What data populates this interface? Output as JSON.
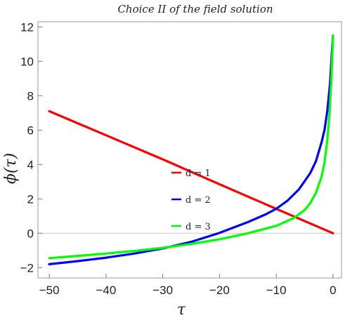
{
  "chart_data": {
    "type": "line",
    "title": "Choice II of the field solution",
    "xlabel": "τ",
    "ylabel": "ϕ(τ)",
    "xlim": [
      -52,
      1.5
    ],
    "ylim": [
      -2.6,
      12.3
    ],
    "xticks": [
      {
        "value": -50,
        "label": "−50"
      },
      {
        "value": -40,
        "label": "−40"
      },
      {
        "value": -30,
        "label": "−30"
      },
      {
        "value": -20,
        "label": "−20"
      },
      {
        "value": -10,
        "label": "−10"
      },
      {
        "value": 0,
        "label": "0"
      }
    ],
    "yticks": [
      {
        "value": -2,
        "label": "−2"
      },
      {
        "value": 0,
        "label": "0"
      },
      {
        "value": 2,
        "label": "2"
      },
      {
        "value": 4,
        "label": "4"
      },
      {
        "value": 6,
        "label": "6"
      },
      {
        "value": 8,
        "label": "8"
      },
      {
        "value": 10,
        "label": "10"
      },
      {
        "value": 12,
        "label": "12"
      }
    ],
    "legend_position": "center",
    "grid": false,
    "series": [
      {
        "name": "d = 1",
        "color": "#ff0000",
        "points": [
          [
            -50,
            7.1
          ],
          [
            -40,
            5.7
          ],
          [
            -30,
            4.3
          ],
          [
            -20,
            2.85
          ],
          [
            -10,
            1.42
          ],
          [
            0,
            0.0
          ]
        ]
      },
      {
        "name": "d = 2",
        "color": "#0000ff",
        "points": [
          [
            -50,
            -1.8
          ],
          [
            -45,
            -1.62
          ],
          [
            -40,
            -1.42
          ],
          [
            -35,
            -1.18
          ],
          [
            -30,
            -0.88
          ],
          [
            -25,
            -0.5
          ],
          [
            -20,
            0.02
          ],
          [
            -15,
            0.65
          ],
          [
            -12,
            1.08
          ],
          [
            -10,
            1.42
          ],
          [
            -8,
            1.9
          ],
          [
            -6,
            2.55
          ],
          [
            -4,
            3.5
          ],
          [
            -3,
            4.2
          ],
          [
            -2,
            5.3
          ],
          [
            -1.5,
            6.0
          ],
          [
            -1,
            7.1
          ],
          [
            -0.5,
            8.8
          ],
          [
            -0.2,
            10.5
          ],
          [
            0,
            11.5
          ]
        ]
      },
      {
        "name": "d = 3",
        "color": "#00ff00",
        "points": [
          [
            -50,
            -1.45
          ],
          [
            -45,
            -1.32
          ],
          [
            -40,
            -1.18
          ],
          [
            -35,
            -1.03
          ],
          [
            -30,
            -0.85
          ],
          [
            -25,
            -0.62
          ],
          [
            -20,
            -0.35
          ],
          [
            -15,
            0.0
          ],
          [
            -10,
            0.43
          ],
          [
            -7,
            0.87
          ],
          [
            -5,
            1.35
          ],
          [
            -4,
            1.75
          ],
          [
            -3,
            2.35
          ],
          [
            -2,
            3.3
          ],
          [
            -1.5,
            4.1
          ],
          [
            -1,
            5.4
          ],
          [
            -0.6,
            7.0
          ],
          [
            -0.3,
            8.9
          ],
          [
            -0.1,
            10.6
          ],
          [
            0,
            11.5
          ]
        ]
      }
    ]
  }
}
